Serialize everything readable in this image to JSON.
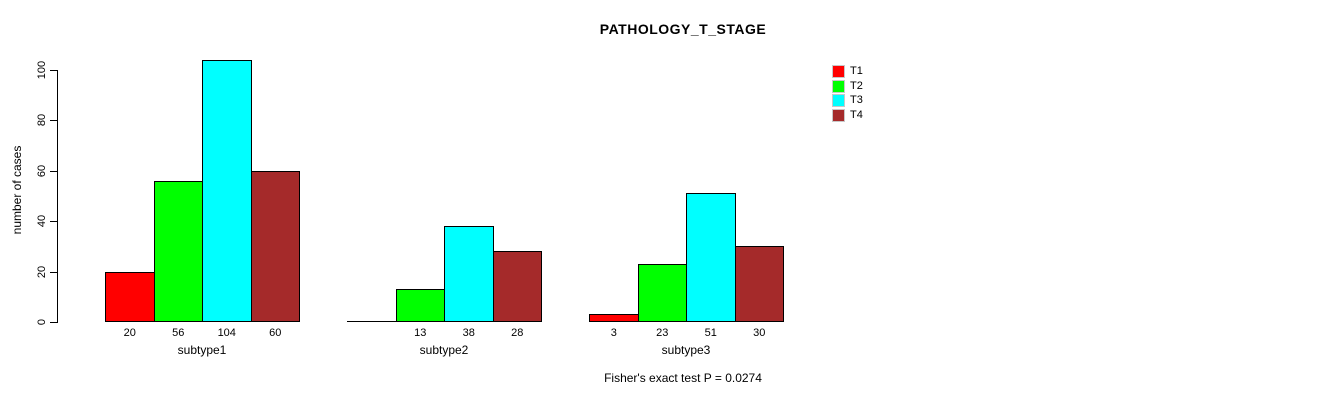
{
  "title": "PATHOLOGY_T_STAGE",
  "chart_data": {
    "type": "bar",
    "grouped": true,
    "title": "PATHOLOGY_T_STAGE",
    "xlabel": "",
    "ylabel": "number of cases",
    "ylim": [
      0,
      100
    ],
    "yticks": [
      0,
      20,
      40,
      60,
      80,
      100
    ],
    "grid": false,
    "categories": [
      "subtype1",
      "subtype2",
      "subtype3"
    ],
    "series": [
      {
        "name": "T1",
        "color": "#ff0000",
        "values": [
          20,
          0,
          3
        ]
      },
      {
        "name": "T2",
        "color": "#00ff00",
        "values": [
          56,
          13,
          23
        ]
      },
      {
        "name": "T3",
        "color": "#00ffff",
        "values": [
          104,
          38,
          51
        ]
      },
      {
        "name": "T4",
        "color": "#a52a2a",
        "values": [
          60,
          28,
          30
        ]
      }
    ],
    "bar_value_labels": [
      [
        "20",
        "56",
        "104",
        "60"
      ],
      [
        "",
        "13",
        "38",
        "28"
      ],
      [
        "3",
        "23",
        "51",
        "30"
      ]
    ],
    "legend": {
      "position": "top-right",
      "entries": [
        {
          "label": "T1",
          "color": "#ff0000"
        },
        {
          "label": "T2",
          "color": "#00ff00"
        },
        {
          "label": "T3",
          "color": "#00ffff"
        },
        {
          "label": "T4",
          "color": "#a52a2a"
        }
      ]
    },
    "annotation": "Fisher's exact test P = 0.0274"
  },
  "colors": {
    "background": "#ffffff",
    "axis": "#000000",
    "bar_border": "#000000",
    "text": "#000000"
  }
}
